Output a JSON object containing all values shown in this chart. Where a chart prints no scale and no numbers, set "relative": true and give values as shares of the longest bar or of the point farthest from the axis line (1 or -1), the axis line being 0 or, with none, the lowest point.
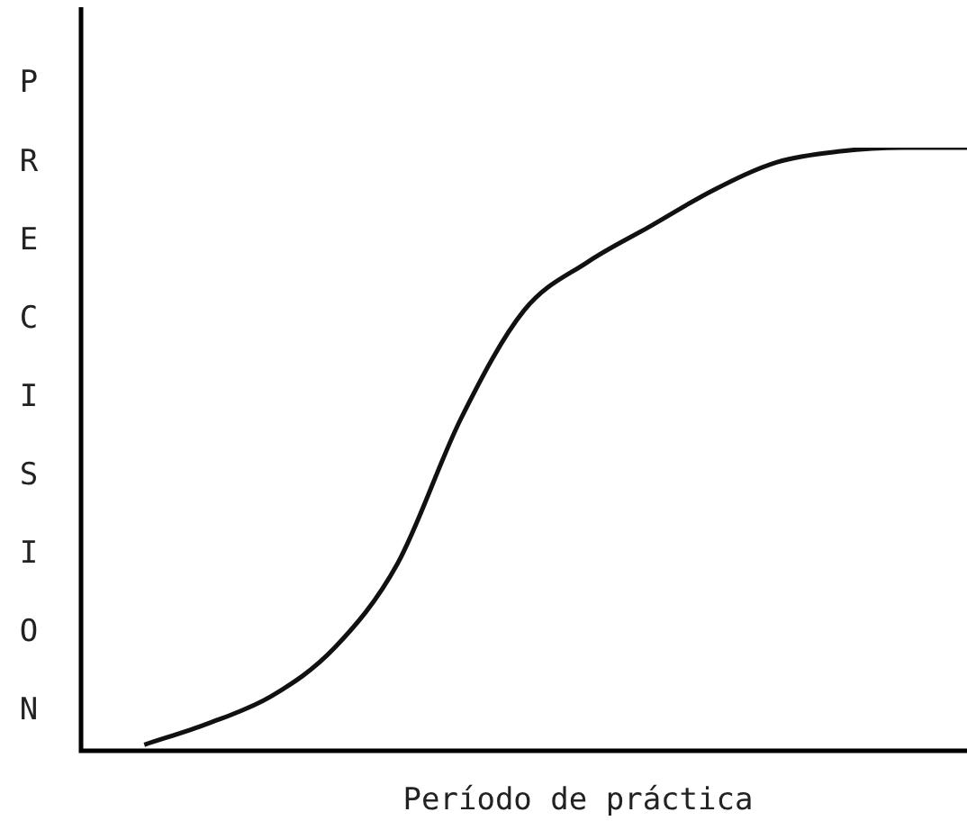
{
  "chart_data": {
    "type": "line",
    "relative": true,
    "xlabel": "Período de práctica",
    "ylabel": "PRECISION",
    "categories": [
      null,
      null,
      null,
      null,
      null,
      null,
      null,
      null,
      null,
      null,
      null,
      null,
      null,
      null,
      null
    ],
    "series": [
      {
        "color": "#111111",
        "values": [
          null,
          0.01,
          0.045,
          0.09,
          0.17,
          0.31,
          0.55,
          0.73,
          0.81,
          0.87,
          0.93,
          0.976,
          0.994,
          1,
          1
        ]
      }
    ],
    "grid": false,
    "legend": false,
    "marker": "none",
    "line_style": "solid"
  }
}
